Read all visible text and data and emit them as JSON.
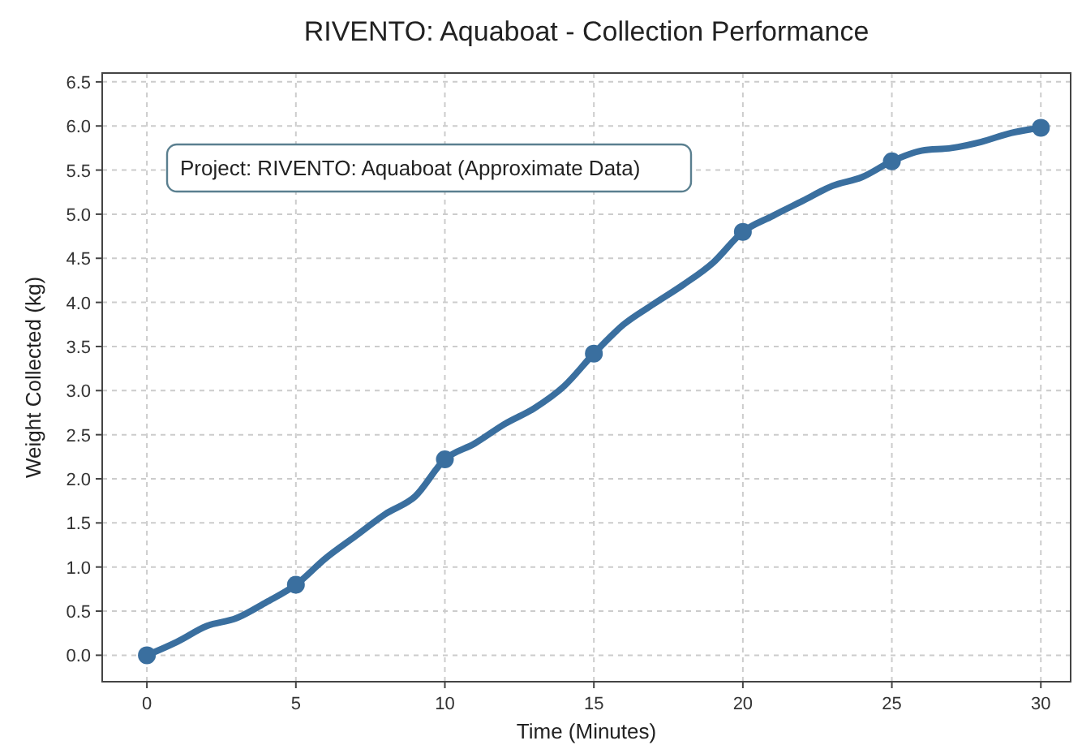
{
  "chart_data": {
    "type": "line",
    "title": "RIVENTO: Aquaboat - Collection Performance",
    "xlabel": "Time (Minutes)",
    "ylabel": "Weight Collected (kg)",
    "annotations": [
      "Project: RIVENTO: Aquaboat (Approximate Data)"
    ],
    "series": [
      {
        "color": "#3a6f9f",
        "marker": "none",
        "x": [
          0,
          1,
          2,
          3,
          4,
          5,
          6,
          7,
          8,
          9,
          10,
          11,
          12,
          13,
          14,
          15,
          16,
          17,
          18,
          19,
          20,
          21,
          22,
          23,
          24,
          25,
          26,
          27,
          28,
          29,
          30
        ],
        "values": [
          0,
          0.15,
          0.33,
          0.42,
          0.6,
          0.8,
          1.1,
          1.35,
          1.6,
          1.8,
          2.22,
          2.4,
          2.62,
          2.8,
          3.05,
          3.42,
          3.75,
          3.98,
          4.2,
          4.45,
          4.8,
          4.98,
          5.15,
          5.32,
          5.42,
          5.6,
          5.72,
          5.75,
          5.82,
          5.92,
          5.98
        ]
      },
      {
        "type": "scatter",
        "color": "#3a6f9f",
        "marker": "circle",
        "x": [
          0,
          5,
          10,
          15,
          20,
          25,
          30
        ],
        "values": [
          0,
          0.8,
          2.22,
          3.42,
          4.8,
          5.6,
          5.98
        ]
      }
    ],
    "xlim": [
      -1.5,
      31
    ],
    "xticks": [
      0,
      5,
      10,
      15,
      20,
      25,
      30
    ],
    "ylim": [
      -0.3,
      6.6
    ],
    "yticks": [
      {
        "value": 0,
        "label": "0.0"
      },
      {
        "value": 0.5,
        "label": "0.5"
      },
      {
        "value": 1,
        "label": "1.0"
      },
      {
        "value": 1.5,
        "label": "1.5"
      },
      {
        "value": 2,
        "label": "2.0"
      },
      {
        "value": 2.5,
        "label": "2.5"
      },
      {
        "value": 3,
        "label": "3.0"
      },
      {
        "value": 3.5,
        "label": "3.5"
      },
      {
        "value": 4,
        "label": "4.0"
      },
      {
        "value": 4.5,
        "label": "4.5"
      },
      {
        "value": 5,
        "label": "5.0"
      },
      {
        "value": 5.5,
        "label": "5.5"
      },
      {
        "value": 6,
        "label": "6.0"
      },
      {
        "value": 6.5,
        "label": "6.5"
      }
    ],
    "grid": true
  }
}
